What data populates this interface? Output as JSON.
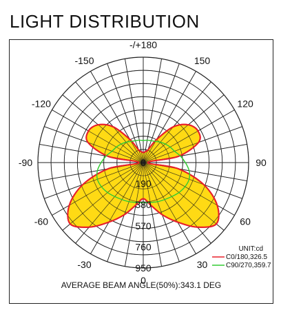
{
  "page_title": "LIGHT DISTRIBUTION",
  "chart_data": {
    "type": "polar",
    "angle_labels": [
      {
        "deg": 180,
        "text": "-/+180"
      },
      {
        "deg": -150,
        "text": "-150"
      },
      {
        "deg": 150,
        "text": "150"
      },
      {
        "deg": -120,
        "text": "-120"
      },
      {
        "deg": 120,
        "text": "120"
      },
      {
        "deg": -90,
        "text": "-90"
      },
      {
        "deg": 90,
        "text": "90"
      },
      {
        "deg": -60,
        "text": "-60"
      },
      {
        "deg": 60,
        "text": "60"
      },
      {
        "deg": -30,
        "text": "-30"
      },
      {
        "deg": 30,
        "text": "30"
      },
      {
        "deg": 0,
        "text": "0"
      }
    ],
    "radial_ticks": [
      {
        "value": 0,
        "text": "0"
      },
      {
        "value": 190,
        "text": "190"
      },
      {
        "value": 380,
        "text": "380"
      },
      {
        "value": 570,
        "text": "570"
      },
      {
        "value": 760,
        "text": "760"
      },
      {
        "value": 950,
        "text": "950"
      }
    ],
    "r_max": 950,
    "unit_label": "UNIT:cd",
    "series": [
      {
        "name": "C0/180,326.5",
        "color": "#e8202a",
        "fill": "#ffd700",
        "angles": [
          0,
          10,
          20,
          30,
          40,
          50,
          60,
          70,
          80,
          90,
          100,
          110,
          120,
          130,
          140,
          150,
          160,
          170,
          180
        ],
        "values": [
          326,
          390,
          500,
          620,
          760,
          860,
          770,
          580,
          320,
          40,
          320,
          530,
          570,
          530,
          420,
          240,
          120,
          100,
          90
        ]
      },
      {
        "name": "C90/270,359.7",
        "color": "#33cc33",
        "angles": [
          0,
          10,
          20,
          30,
          40,
          50,
          60,
          70,
          80,
          90,
          100,
          110,
          120,
          130,
          140,
          150,
          160,
          170,
          180
        ],
        "values": [
          360,
          365,
          375,
          385,
          400,
          420,
          435,
          440,
          420,
          380,
          340,
          300,
          280,
          260,
          240,
          220,
          210,
          205,
          200
        ]
      }
    ],
    "footer": "AVERAGE BEAM ANGLE(50%):343.1 DEG"
  }
}
